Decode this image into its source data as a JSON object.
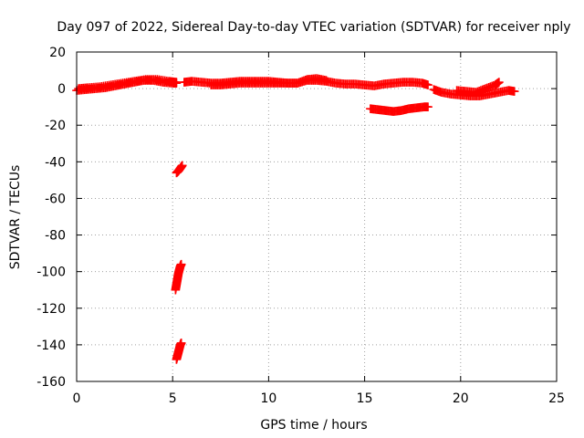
{
  "chart_data": {
    "type": "scatter",
    "title": "Day 097 of 2022, Sidereal Day-to-day VTEC variation (SDTVAR) for receiver nply",
    "xlabel": "GPS time / hours",
    "ylabel": "SDTVAR / TECUs",
    "xlim": [
      0,
      25
    ],
    "ylim": [
      -160,
      20
    ],
    "xticks": [
      0,
      5,
      10,
      15,
      20,
      25
    ],
    "yticks": [
      20,
      0,
      -20,
      -40,
      -60,
      -80,
      -100,
      -120,
      -140,
      -160
    ],
    "xtick_labels": [
      "0",
      "5",
      "10",
      "15",
      "20",
      "25"
    ],
    "ytick_labels": [
      "20",
      "0",
      "-20",
      "-40",
      "-60",
      "-80",
      "-100",
      "-120",
      "-140",
      "-160"
    ],
    "grid": true,
    "marker": "plus",
    "series": [
      {
        "name": "SDTVAR",
        "color": "#ff0000",
        "segments": [
          {
            "x": [
              0.0,
              0.5,
              1.0,
              1.5,
              2.0,
              2.5,
              3.0,
              3.5,
              4.0,
              4.5,
              5.0,
              5.2
            ],
            "y": [
              -1,
              -0.5,
              0,
              0.5,
              1.5,
              2.5,
              3.5,
              4.5,
              4.5,
              3.5,
              3,
              3
            ]
          },
          {
            "x": [
              0.1,
              0.6,
              1.2,
              1.8,
              2.4,
              3.0,
              3.6,
              4.2,
              4.8,
              5.2
            ],
            "y": [
              0,
              0.5,
              1,
              2,
              3,
              4,
              5,
              5,
              4,
              3.5
            ]
          },
          {
            "x": [
              5.2,
              5.3,
              5.4,
              5.5
            ],
            "y": [
              -46,
              -45,
              -43.5,
              -42
            ]
          },
          {
            "x": [
              5.15,
              5.2,
              5.25,
              5.3,
              5.35,
              5.4,
              5.45
            ],
            "y": [
              -110,
              -107,
              -104,
              -101,
              -99,
              -97,
              -96
            ]
          },
          {
            "x": [
              5.2,
              5.25,
              5.3,
              5.35,
              5.4,
              5.45
            ],
            "y": [
              -148,
              -146,
              -144,
              -142,
              -140,
              -139
            ]
          },
          {
            "x": [
              5.6,
              6.0,
              6.5,
              7.0,
              7.5,
              8.0,
              8.5,
              9.0,
              9.5,
              10.0,
              10.5,
              11.0,
              11.5,
              12.0,
              12.5,
              13.0,
              13.5,
              14.0,
              14.5,
              15.0,
              15.5,
              16.0,
              16.5,
              17.0,
              17.5,
              18.0,
              18.3
            ],
            "y": [
              3.5,
              4,
              3.5,
              3,
              3,
              3.5,
              4,
              4,
              4,
              4,
              3.5,
              3,
              3,
              4.5,
              4.5,
              4,
              3,
              2.5,
              2.5,
              2,
              1.5,
              2.5,
              3,
              3.5,
              3.5,
              3,
              2
            ]
          },
          {
            "x": [
              7.0,
              7.5,
              8.0,
              8.5,
              9.0,
              9.5,
              10.0,
              10.5,
              11.0,
              11.5,
              12.0,
              12.5,
              13.0
            ],
            "y": [
              2,
              2,
              2.5,
              3,
              3,
              3,
              3,
              3,
              3,
              3,
              5,
              5.5,
              4.5
            ]
          },
          {
            "x": [
              15.3,
              15.7,
              16.1,
              16.5,
              16.9,
              17.3,
              17.7,
              18.1,
              18.3
            ],
            "y": [
              -11,
              -11.5,
              -12,
              -12.5,
              -12,
              -11,
              -10.5,
              -10,
              -10
            ]
          },
          {
            "x": [
              18.6,
              19.0,
              19.5,
              20.0,
              20.5,
              21.0,
              21.5,
              22.0,
              22.5,
              22.8
            ],
            "y": [
              -0.5,
              -2,
              -3,
              -3.5,
              -4,
              -4,
              -3,
              -2,
              -1,
              -1.5
            ]
          },
          {
            "x": [
              19.8,
              20.3,
              20.8,
              21.3,
              21.8,
              22.0
            ],
            "y": [
              -1,
              -1.5,
              -2,
              0,
              2,
              3.5
            ]
          }
        ]
      }
    ]
  }
}
